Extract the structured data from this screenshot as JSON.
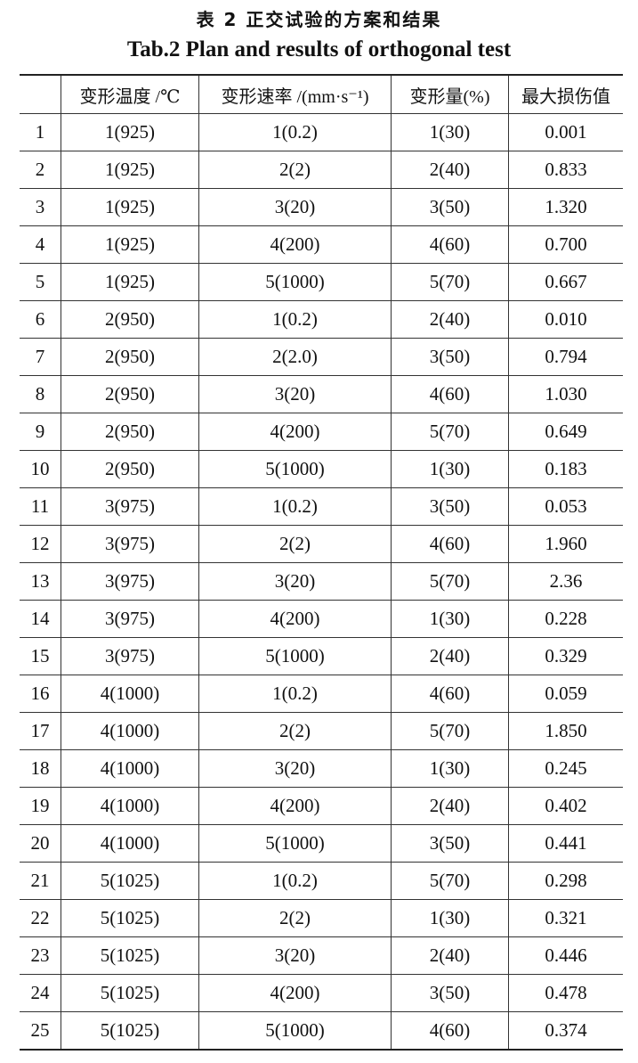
{
  "title_cn": "表 2  正交试验的方案和结果",
  "title_en": "Tab.2  Plan and results of orthogonal test",
  "headers": [
    "",
    "变形温度 /℃",
    "变形速率 /(mm·s⁻¹)",
    "变形量(%)",
    "最大损伤值"
  ],
  "rows": [
    [
      "1",
      "1(925)",
      "1(0.2)",
      "1(30)",
      "0.001"
    ],
    [
      "2",
      "1(925)",
      "2(2)",
      "2(40)",
      "0.833"
    ],
    [
      "3",
      "1(925)",
      "3(20)",
      "3(50)",
      "1.320"
    ],
    [
      "4",
      "1(925)",
      "4(200)",
      "4(60)",
      "0.700"
    ],
    [
      "5",
      "1(925)",
      "5(1000)",
      "5(70)",
      "0.667"
    ],
    [
      "6",
      "2(950)",
      "1(0.2)",
      "2(40)",
      "0.010"
    ],
    [
      "7",
      "2(950)",
      "2(2.0)",
      "3(50)",
      "0.794"
    ],
    [
      "8",
      "2(950)",
      "3(20)",
      "4(60)",
      "1.030"
    ],
    [
      "9",
      "2(950)",
      "4(200)",
      "5(70)",
      "0.649"
    ],
    [
      "10",
      "2(950)",
      "5(1000)",
      "1(30)",
      "0.183"
    ],
    [
      "11",
      "3(975)",
      "1(0.2)",
      "3(50)",
      "0.053"
    ],
    [
      "12",
      "3(975)",
      "2(2)",
      "4(60)",
      "1.960"
    ],
    [
      "13",
      "3(975)",
      "3(20)",
      "5(70)",
      "2.36"
    ],
    [
      "14",
      "3(975)",
      "4(200)",
      "1(30)",
      "0.228"
    ],
    [
      "15",
      "3(975)",
      "5(1000)",
      "2(40)",
      "0.329"
    ],
    [
      "16",
      "4(1000)",
      "1(0.2)",
      "4(60)",
      "0.059"
    ],
    [
      "17",
      "4(1000)",
      "2(2)",
      "5(70)",
      "1.850"
    ],
    [
      "18",
      "4(1000)",
      "3(20)",
      "1(30)",
      "0.245"
    ],
    [
      "19",
      "4(1000)",
      "4(200)",
      "2(40)",
      "0.402"
    ],
    [
      "20",
      "4(1000)",
      "5(1000)",
      "3(50)",
      "0.441"
    ],
    [
      "21",
      "5(1025)",
      "1(0.2)",
      "5(70)",
      "0.298"
    ],
    [
      "22",
      "5(1025)",
      "2(2)",
      "1(30)",
      "0.321"
    ],
    [
      "23",
      "5(1025)",
      "3(20)",
      "2(40)",
      "0.446"
    ],
    [
      "24",
      "5(1025)",
      "4(200)",
      "3(50)",
      "0.478"
    ],
    [
      "25",
      "5(1025)",
      "5(1000)",
      "4(60)",
      "0.374"
    ]
  ]
}
